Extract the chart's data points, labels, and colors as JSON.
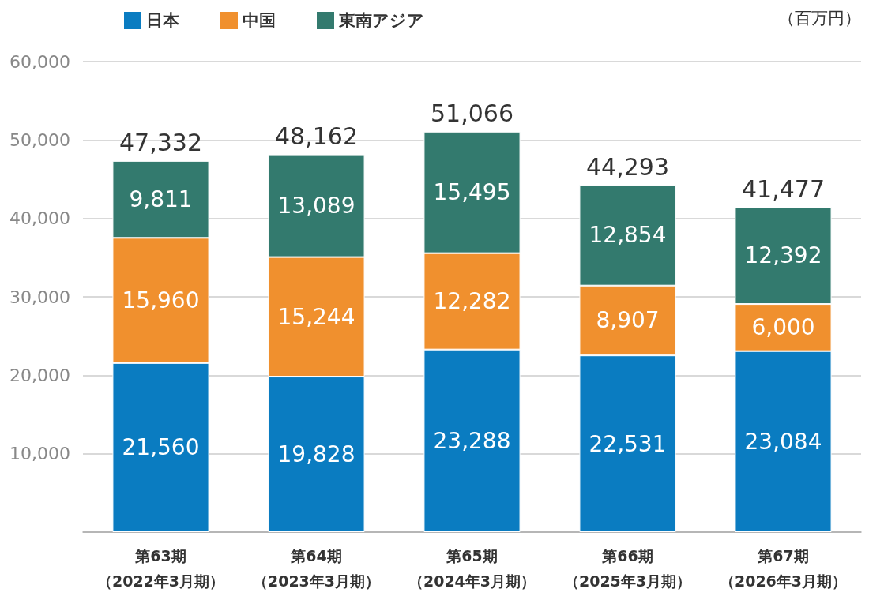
{
  "chart_data": {
    "type": "bar",
    "stacked": true,
    "categories": [
      "第63期（2022年3月期）",
      "第64期（2023年3月期）",
      "第65期（2024年3月期）",
      "第66期（2025年3月期）",
      "第67期（2026年3月期）"
    ],
    "series": [
      {
        "name": "日本",
        "color": "#0a7cc1",
        "values": [
          21560,
          19828,
          23288,
          22531,
          23084
        ],
        "value_labels": [
          "21,560",
          "19,828",
          "23,288",
          "22,531",
          "23,084"
        ]
      },
      {
        "name": "中国",
        "color": "#f0902e",
        "values": [
          15960,
          15244,
          12282,
          8907,
          6000
        ],
        "value_labels": [
          "15,960",
          "15,244",
          "12,282",
          "8,907",
          "6,000"
        ]
      },
      {
        "name": "東南アジア",
        "color": "#337a6e",
        "values": [
          9811,
          13089,
          15495,
          12854,
          12392
        ],
        "value_labels": [
          "9,811",
          "13,089",
          "15,495",
          "12,854",
          "12,392"
        ]
      }
    ],
    "ylim": [
      0,
      60000
    ],
    "yticks": [
      {
        "value": 0,
        "label": null
      },
      {
        "value": 10000,
        "label": "10,000"
      },
      {
        "value": 20000,
        "label": "20,000"
      },
      {
        "value": 30000,
        "label": "30,000"
      },
      {
        "value": 40000,
        "label": "40,000"
      },
      {
        "value": 50000,
        "label": "50,000"
      },
      {
        "value": 60000,
        "label": "60,000"
      }
    ],
    "grid": "y",
    "legend": "top left",
    "totals": [
      "47,332",
      "48,162",
      "51,066",
      "44,293",
      "41,477"
    ],
    "annotations": [
      "（百万円）"
    ]
  }
}
